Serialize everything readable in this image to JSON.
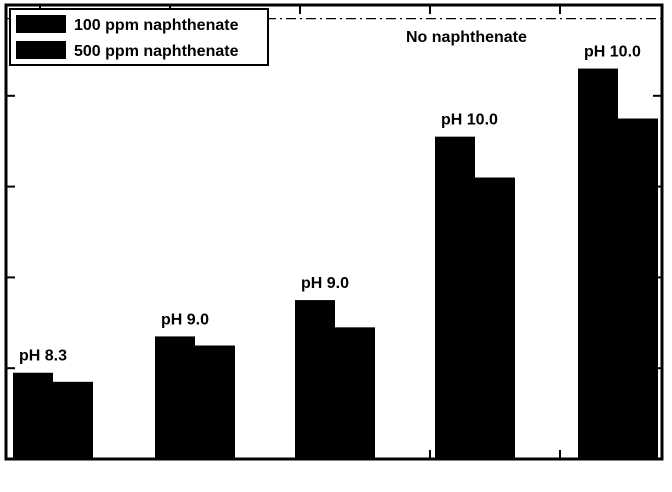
{
  "chart_data": {
    "type": "bar",
    "title": "",
    "xlabel": "",
    "ylabel": "",
    "ylim": [
      0,
      100
    ],
    "grid": false,
    "legend_position": "top-left",
    "categories": [
      "pH 8.3",
      "pH 9.0",
      "pH 9.0",
      "pH 10.0",
      "pH 10.0"
    ],
    "series": [
      {
        "name": "100 ppm naphthenate",
        "values": [
          19,
          27,
          35,
          71,
          86
        ]
      },
      {
        "name": "500 ppm naphthenate",
        "values": [
          17,
          25,
          29,
          62,
          75
        ]
      }
    ],
    "reference_line": {
      "label": "No naphthenate",
      "value": 97,
      "style": "dash-dot"
    },
    "colors": {
      "bars": "#000000",
      "background": "#ffffff",
      "axes": "#000000"
    }
  }
}
